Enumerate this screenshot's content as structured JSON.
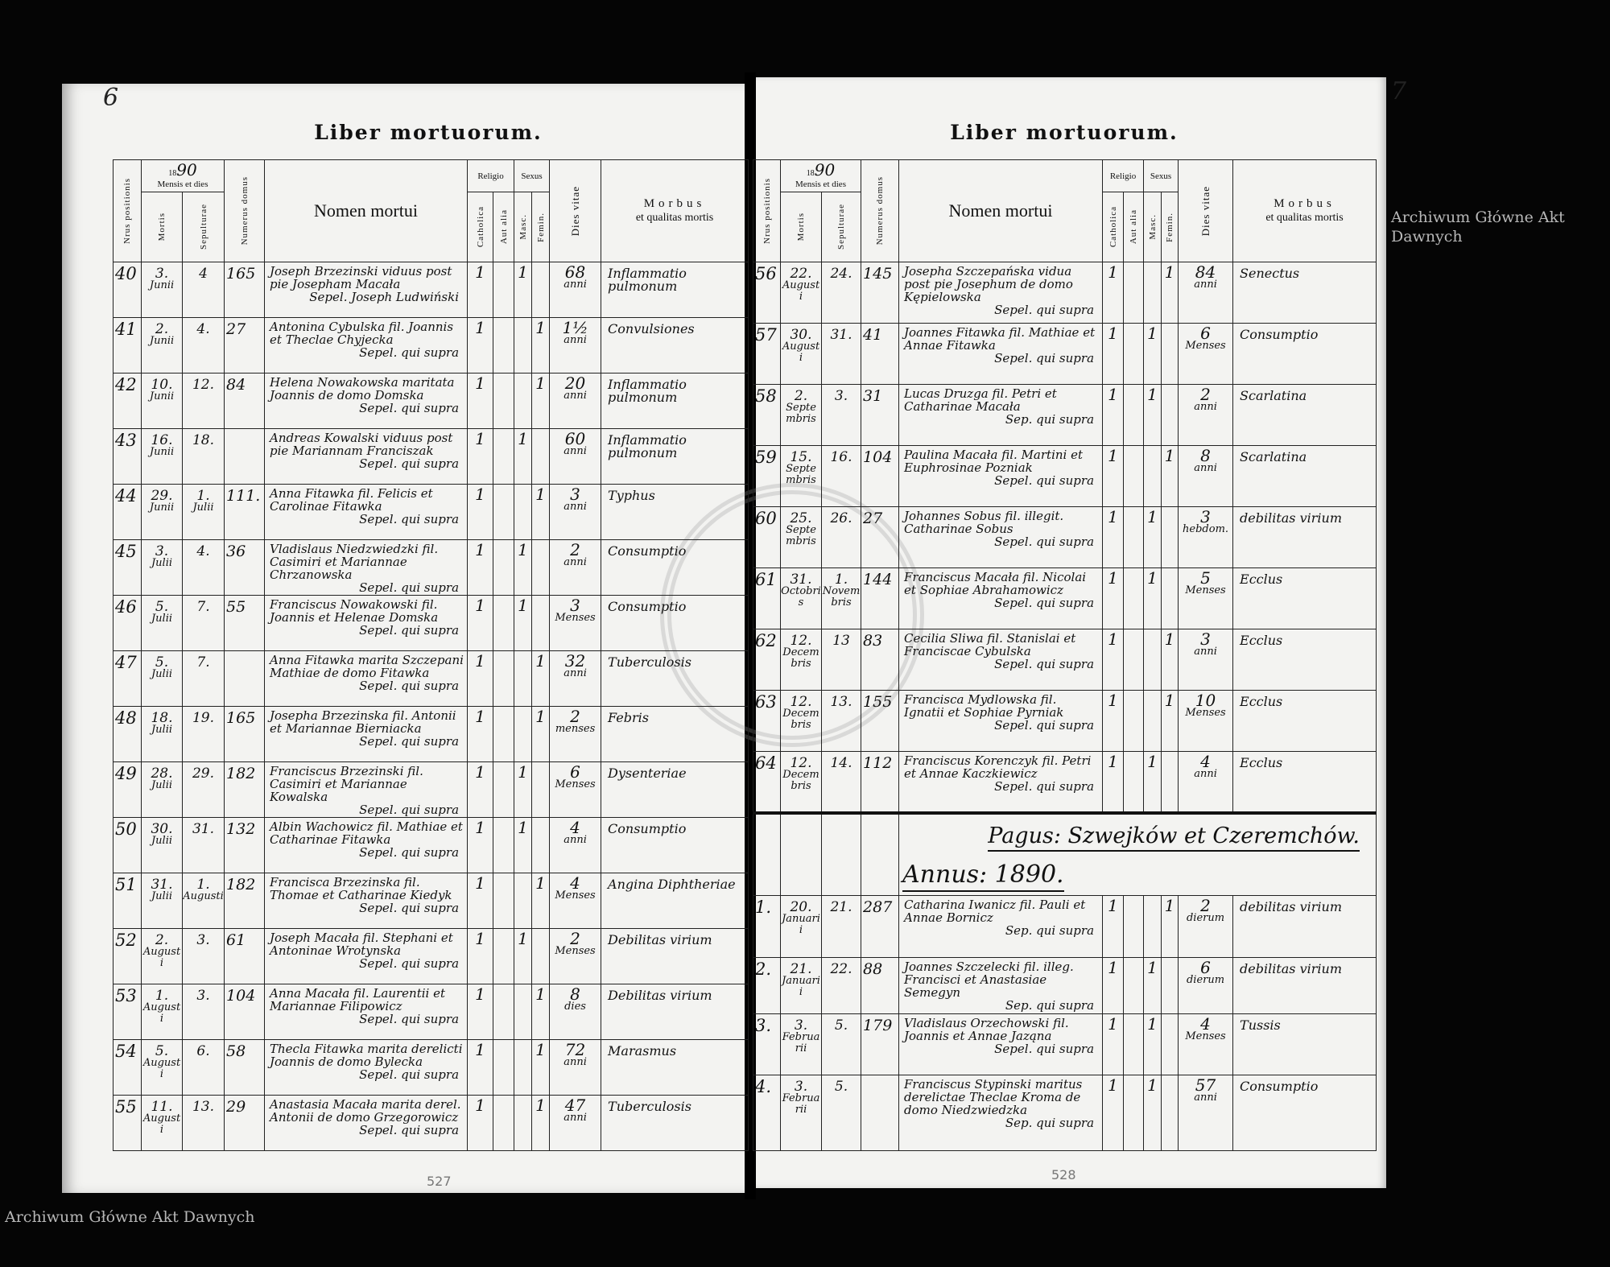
{
  "left_page": {
    "folio": "6",
    "title": "Liber mortuorum.",
    "stamp_number": "527",
    "year_prefix": "18",
    "year": "90"
  },
  "right_page": {
    "folio": "7",
    "title": "Liber mortuorum.",
    "stamp_number": "528",
    "year_prefix": "18",
    "year": "90",
    "section": {
      "pagus": "Pagus: Szwejków et Czeremchów.",
      "annus": "Annus: 1890."
    }
  },
  "watermark": "Archiwum Główne Akt Dawnych",
  "headers": {
    "nrus": "Nrus positionis",
    "mensis": "Mensis et dies",
    "mortis": "Mortis",
    "sepulturae": "Sepulturae",
    "numerus": "Numerus domus",
    "nomen": "Nomen mortui",
    "religio": "Religio",
    "catholica": "Catholica",
    "aut_alia": "Aut alia",
    "sexus": "Sexus",
    "masc": "Masc.",
    "femin": "Femin.",
    "dies_vitae": "Dies vitae",
    "morbus": "Morbus",
    "qualitas": "et qualitas mortis"
  },
  "left_rows": [
    {
      "nr": "40",
      "mortis_d": "3.",
      "mortis_m": "Junii",
      "sep_d": "4",
      "sep_m": "",
      "domus": "165",
      "nomen": "Joseph Brzezinski viduus post pie Josepham Macała",
      "sepel": "Sepel. Joseph Ludwiński",
      "cath": "1",
      "alia": "",
      "masc": "1",
      "fem": "",
      "age_n": "68",
      "age_u": "anni",
      "morbus": "Inflammatio pulmonum"
    },
    {
      "nr": "41",
      "mortis_d": "2.",
      "mortis_m": "Junii",
      "sep_d": "4.",
      "sep_m": "",
      "domus": "27",
      "nomen": "Antonina Cybulska fil. Joannis et Theclae Chyjecka",
      "sepel": "Sepel. qui supra",
      "cath": "1",
      "alia": "",
      "masc": "",
      "fem": "1",
      "age_n": "1½",
      "age_u": "anni",
      "morbus": "Convulsiones"
    },
    {
      "nr": "42",
      "mortis_d": "10.",
      "mortis_m": "Junii",
      "sep_d": "12.",
      "sep_m": "",
      "domus": "84",
      "nomen": "Helena Nowakowska maritata Joannis de domo Domska",
      "sepel": "Sepel. qui supra",
      "cath": "1",
      "alia": "",
      "masc": "",
      "fem": "1",
      "age_n": "20",
      "age_u": "anni",
      "morbus": "Inflammatio pulmonum"
    },
    {
      "nr": "43",
      "mortis_d": "16.",
      "mortis_m": "Junii",
      "sep_d": "18.",
      "sep_m": "",
      "domus": "",
      "nomen": "Andreas Kowalski viduus post pie Mariannam Franciszak",
      "sepel": "Sepel. qui supra",
      "cath": "1",
      "alia": "",
      "masc": "1",
      "fem": "",
      "age_n": "60",
      "age_u": "anni",
      "morbus": "Inflammatio pulmonum"
    },
    {
      "nr": "44",
      "mortis_d": "29.",
      "mortis_m": "Junii",
      "sep_d": "1.",
      "sep_m": "Julii",
      "domus": "111.",
      "nomen": "Anna Fitawka fil. Felicis et Carolinae Fitawka",
      "sepel": "Sepel. qui supra",
      "cath": "1",
      "alia": "",
      "masc": "",
      "fem": "1",
      "age_n": "3",
      "age_u": "anni",
      "morbus": "Typhus"
    },
    {
      "nr": "45",
      "mortis_d": "3.",
      "mortis_m": "Julii",
      "sep_d": "4.",
      "sep_m": "",
      "domus": "36",
      "nomen": "Vladislaus Niedzwiedzki fil. Casimiri et Mariannae Chrzanowska",
      "sepel": "Sepel. qui supra",
      "cath": "1",
      "alia": "",
      "masc": "1",
      "fem": "",
      "age_n": "2",
      "age_u": "anni",
      "morbus": "Consumptio"
    },
    {
      "nr": "46",
      "mortis_d": "5.",
      "mortis_m": "Julii",
      "sep_d": "7.",
      "sep_m": "",
      "domus": "55",
      "nomen": "Franciscus Nowakowski fil. Joannis et Helenae Domska",
      "sepel": "Sepel. qui supra",
      "cath": "1",
      "alia": "",
      "masc": "1",
      "fem": "",
      "age_n": "3",
      "age_u": "Menses",
      "morbus": "Consumptio"
    },
    {
      "nr": "47",
      "mortis_d": "5.",
      "mortis_m": "Julii",
      "sep_d": "7.",
      "sep_m": "",
      "domus": "",
      "nomen": "Anna Fitawka marita Szczepani Mathiae de domo Fitawka",
      "sepel": "Sepel. qui supra",
      "cath": "1",
      "alia": "",
      "masc": "",
      "fem": "1",
      "age_n": "32",
      "age_u": "anni",
      "morbus": "Tuberculosis"
    },
    {
      "nr": "48",
      "mortis_d": "18.",
      "mortis_m": "Julii",
      "sep_d": "19.",
      "sep_m": "",
      "domus": "165",
      "nomen": "Josepha Brzezinska fil. Antonii et Mariannae Bierniacka",
      "sepel": "Sepel. qui supra",
      "cath": "1",
      "alia": "",
      "masc": "",
      "fem": "1",
      "age_n": "2",
      "age_u": "menses",
      "morbus": "Febris"
    },
    {
      "nr": "49",
      "mortis_d": "28.",
      "mortis_m": "Julii",
      "sep_d": "29.",
      "sep_m": "",
      "domus": "182",
      "nomen": "Franciscus Brzezinski fil. Casimiri et Mariannae Kowalska",
      "sepel": "Sepel. qui supra",
      "cath": "1",
      "alia": "",
      "masc": "1",
      "fem": "",
      "age_n": "6",
      "age_u": "Menses",
      "morbus": "Dysenteriae"
    },
    {
      "nr": "50",
      "mortis_d": "30.",
      "mortis_m": "Julii",
      "sep_d": "31.",
      "sep_m": "",
      "domus": "132",
      "nomen": "Albin Wachowicz fil. Mathiae et Catharinae Fitawka",
      "sepel": "Sepel. qui supra",
      "cath": "1",
      "alia": "",
      "masc": "1",
      "fem": "",
      "age_n": "4",
      "age_u": "anni",
      "morbus": "Consumptio"
    },
    {
      "nr": "51",
      "mortis_d": "31.",
      "mortis_m": "Julii",
      "sep_d": "1.",
      "sep_m": "Augusti",
      "domus": "182",
      "nomen": "Francisca Brzezinska fil. Thomae et Catharinae Kiedyk",
      "sepel": "Sepel. qui supra",
      "cath": "1",
      "alia": "",
      "masc": "",
      "fem": "1",
      "age_n": "4",
      "age_u": "Menses",
      "morbus": "Angina Diphtheriae"
    },
    {
      "nr": "52",
      "mortis_d": "2.",
      "mortis_m": "Augusti",
      "sep_d": "3.",
      "sep_m": "",
      "domus": "61",
      "nomen": "Joseph Macała fil. Stephani et Antoninae Wrotynska",
      "sepel": "Sepel. qui supra",
      "cath": "1",
      "alia": "",
      "masc": "1",
      "fem": "",
      "age_n": "2",
      "age_u": "Menses",
      "morbus": "Debilitas virium"
    },
    {
      "nr": "53",
      "mortis_d": "1.",
      "mortis_m": "Augusti",
      "sep_d": "3.",
      "sep_m": "",
      "domus": "104",
      "nomen": "Anna Macała fil. Laurentii et Mariannae Filipowicz",
      "sepel": "Sepel. qui supra",
      "cath": "1",
      "alia": "",
      "masc": "",
      "fem": "1",
      "age_n": "8",
      "age_u": "dies",
      "morbus": "Debilitas virium"
    },
    {
      "nr": "54",
      "mortis_d": "5.",
      "mortis_m": "Augusti",
      "sep_d": "6.",
      "sep_m": "",
      "domus": "58",
      "nomen": "Thecla Fitawka marita derelicti Joannis de domo Bylecka",
      "sepel": "Sepel. qui supra",
      "cath": "1",
      "alia": "",
      "masc": "",
      "fem": "1",
      "age_n": "72",
      "age_u": "anni",
      "morbus": "Marasmus"
    },
    {
      "nr": "55",
      "mortis_d": "11.",
      "mortis_m": "Augusti",
      "sep_d": "13.",
      "sep_m": "",
      "domus": "29",
      "nomen": "Anastasia Macała marita derel. Antonii de domo Grzegorowicz",
      "sepel": "Sepel. qui supra",
      "cath": "1",
      "alia": "",
      "masc": "",
      "fem": "1",
      "age_n": "47",
      "age_u": "anni",
      "morbus": "Tuberculosis"
    }
  ],
  "right_rows": [
    {
      "nr": "56",
      "mortis_d": "22.",
      "mortis_m": "Augusti",
      "sep_d": "24.",
      "sep_m": "",
      "domus": "145",
      "nomen": "Josepha Szczepańska vidua post pie Josephum de domo Kępielowska",
      "sepel": "Sepel. qui supra",
      "cath": "1",
      "alia": "",
      "masc": "",
      "fem": "1",
      "age_n": "84",
      "age_u": "anni",
      "morbus": "Senectus"
    },
    {
      "nr": "57",
      "mortis_d": "30.",
      "mortis_m": "Augusti",
      "sep_d": "31.",
      "sep_m": "",
      "domus": "41",
      "nomen": "Joannes Fitawka fil. Mathiae et Annae Fitawka",
      "sepel": "Sepel. qui supra",
      "cath": "1",
      "alia": "",
      "masc": "1",
      "fem": "",
      "age_n": "6",
      "age_u": "Menses",
      "morbus": "Consumptio"
    },
    {
      "nr": "58",
      "mortis_d": "2.",
      "mortis_m": "Septembris",
      "sep_d": "3.",
      "sep_m": "",
      "domus": "31",
      "nomen": "Lucas Druzga fil. Petri et Catharinae Macała",
      "sepel": "Sep. qui supra",
      "cath": "1",
      "alia": "",
      "masc": "1",
      "fem": "",
      "age_n": "2",
      "age_u": "anni",
      "morbus": "Scarlatina"
    },
    {
      "nr": "59",
      "mortis_d": "15.",
      "mortis_m": "Septembris",
      "sep_d": "16.",
      "sep_m": "",
      "domus": "104",
      "nomen": "Paulina Macała fil. Martini et Euphrosinae Pozniak",
      "sepel": "Sepel. qui supra",
      "cath": "1",
      "alia": "",
      "masc": "",
      "fem": "1",
      "age_n": "8",
      "age_u": "anni",
      "morbus": "Scarlatina"
    },
    {
      "nr": "60",
      "mortis_d": "25.",
      "mortis_m": "Septembris",
      "sep_d": "26.",
      "sep_m": "",
      "domus": "27",
      "nomen": "Johannes Sobus fil. illegit. Catharinae Sobus",
      "sepel": "Sepel. qui supra",
      "cath": "1",
      "alia": "",
      "masc": "1",
      "fem": "",
      "age_n": "3",
      "age_u": "hebdom.",
      "morbus": "debilitas virium"
    },
    {
      "nr": "61",
      "mortis_d": "31.",
      "mortis_m": "Octobris",
      "sep_d": "1.",
      "sep_m": "Novembris",
      "domus": "144",
      "nomen": "Franciscus Macała fil. Nicolai et Sophiae Abrahamowicz",
      "sepel": "Sepel. qui supra",
      "cath": "1",
      "alia": "",
      "masc": "1",
      "fem": "",
      "age_n": "5",
      "age_u": "Menses",
      "morbus": "Ecclus"
    },
    {
      "nr": "62",
      "mortis_d": "12.",
      "mortis_m": "Decembris",
      "sep_d": "13",
      "sep_m": "",
      "domus": "83",
      "nomen": "Cecilia Sliwa fil. Stanislai et Franciscae Cybulska",
      "sepel": "Sepel. qui supra",
      "cath": "1",
      "alia": "",
      "masc": "",
      "fem": "1",
      "age_n": "3",
      "age_u": "anni",
      "morbus": "Ecclus"
    },
    {
      "nr": "63",
      "mortis_d": "12.",
      "mortis_m": "Decembris",
      "sep_d": "13.",
      "sep_m": "",
      "domus": "155",
      "nomen": "Francisca Mydlowska fil. Ignatii et Sophiae Pyrniak",
      "sepel": "Sepel. qui supra",
      "cath": "1",
      "alia": "",
      "masc": "",
      "fem": "1",
      "age_n": "10",
      "age_u": "Menses",
      "morbus": "Ecclus"
    },
    {
      "nr": "64",
      "mortis_d": "12.",
      "mortis_m": "Decembris",
      "sep_d": "14.",
      "sep_m": "",
      "domus": "112",
      "nomen": "Franciscus Korenczyk fil. Petri et Annae Kaczkiewicz",
      "sepel": "Sepel. qui supra",
      "cath": "1",
      "alia": "",
      "masc": "1",
      "fem": "",
      "age_n": "4",
      "age_u": "anni",
      "morbus": "Ecclus"
    }
  ],
  "right_rows_pagus": [
    {
      "nr": "1.",
      "mortis_d": "20.",
      "mortis_m": "Januarii",
      "sep_d": "21.",
      "sep_m": "",
      "domus": "287",
      "nomen": "Catharina Iwanicz fil. Pauli et Annae Bornicz",
      "sepel": "Sep. qui supra",
      "cath": "1",
      "alia": "",
      "masc": "",
      "fem": "1",
      "age_n": "2",
      "age_u": "dierum",
      "morbus": "debilitas virium"
    },
    {
      "nr": "2.",
      "mortis_d": "21.",
      "mortis_m": "Januarii",
      "sep_d": "22.",
      "sep_m": "",
      "domus": "88",
      "nomen": "Joannes Szczelecki fil. illeg. Francisci et Anastasiae Semegyn",
      "sepel": "Sep. qui supra",
      "cath": "1",
      "alia": "",
      "masc": "1",
      "fem": "",
      "age_n": "6",
      "age_u": "dierum",
      "morbus": "debilitas virium"
    },
    {
      "nr": "3.",
      "mortis_d": "3.",
      "mortis_m": "Februarii",
      "sep_d": "5.",
      "sep_m": "",
      "domus": "179",
      "nomen": "Vladislaus Orzechowski fil. Joannis et Annae Jaząna",
      "sepel": "Sepel. qui supra",
      "cath": "1",
      "alia": "",
      "masc": "1",
      "fem": "",
      "age_n": "4",
      "age_u": "Menses",
      "morbus": "Tussis"
    },
    {
      "nr": "4.",
      "mortis_d": "3.",
      "mortis_m": "Februarii",
      "sep_d": "5.",
      "sep_m": "",
      "domus": "",
      "nomen": "Franciscus Stypinski maritus derelictae Theclae Kroma de domo Niedzwiedzka",
      "sepel": "Sep. qui supra",
      "cath": "1",
      "alia": "",
      "masc": "1",
      "fem": "",
      "age_n": "57",
      "age_u": "anni",
      "morbus": "Consumptio"
    }
  ]
}
